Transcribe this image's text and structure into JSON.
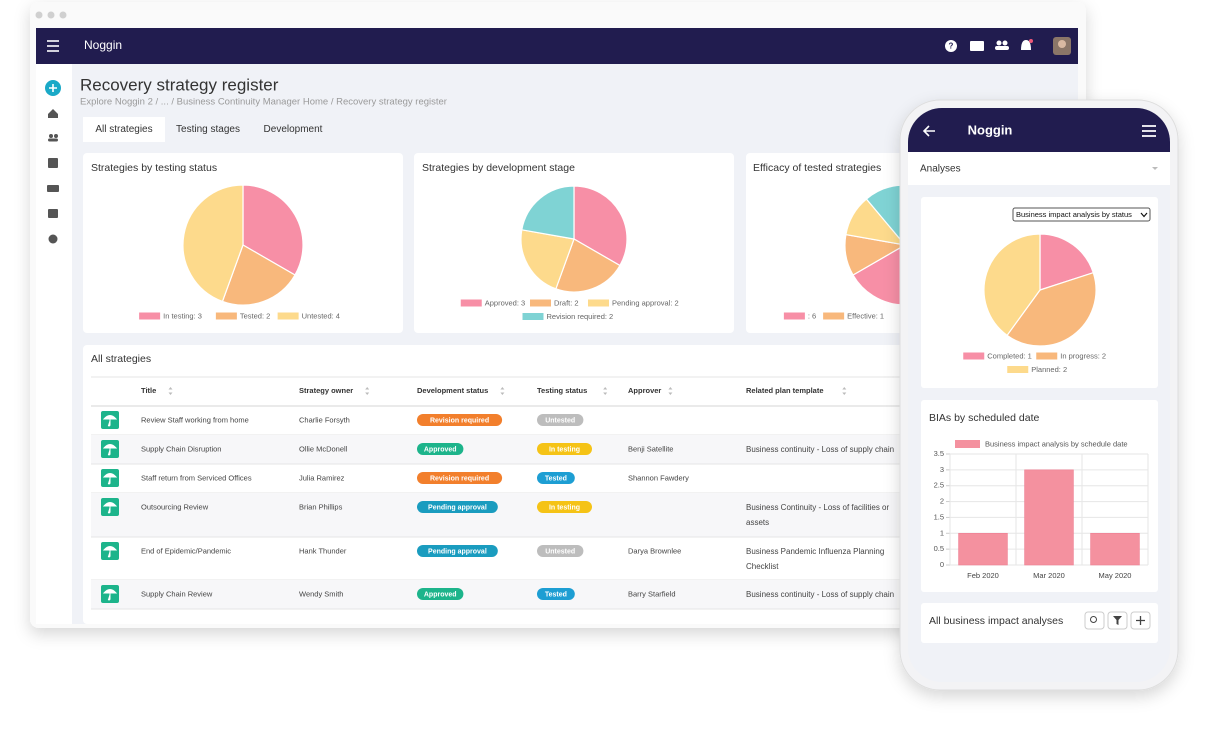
{
  "desktop": {
    "brand": "Noggin",
    "page_title": "Recovery strategy register",
    "breadcrumb": "Explore Noggin 2 / ... / Business Continuity Manager Home / Recovery strategy register",
    "tabs": [
      "All strategies",
      "Testing stages",
      "Development"
    ],
    "charts": [
      {
        "type": "pie",
        "title": "Strategies by testing status",
        "labels": [
          "In testing: 3",
          "Tested: 2",
          "Untested: 4"
        ],
        "values": [
          3,
          2,
          4
        ],
        "colors": [
          "#f78fa6",
          "#f8b87c",
          "#fdda8c"
        ]
      },
      {
        "type": "pie",
        "title": "Strategies by development stage",
        "labels": [
          "Approved: 3",
          "Draft: 2",
          "Pending approval: 2",
          "Revision required: 2"
        ],
        "values": [
          3,
          2,
          2,
          2
        ],
        "colors": [
          "#f78fa6",
          "#f8b87c",
          "#fdda8c",
          "#7fd3d4"
        ]
      },
      {
        "type": "pie",
        "title": "Efficacy of tested strategies",
        "labels": [
          ": 6",
          "Effective: 1",
          null,
          null
        ],
        "values": [
          6,
          1,
          1,
          1
        ],
        "colors": [
          "#f78fa6",
          "#f8b87c",
          "#fdda8c",
          "#7fd3d4"
        ]
      }
    ],
    "table": {
      "title": "All strategies",
      "columns": [
        "Title",
        "Strategy owner",
        "Development status",
        "Testing status",
        "Approver",
        "Related plan template"
      ],
      "rows": [
        [
          "Review Staff working from home",
          "Charlie Forsyth",
          "Revision required",
          "Untested",
          null,
          null
        ],
        [
          "Supply Chain Disruption",
          "Ollie McDonell",
          "Approved",
          "In testing",
          "Benji Satellite",
          "Business continuity - Loss of supply chain"
        ],
        [
          "Staff return from Serviced Offices",
          "Julia Ramirez",
          "Revision required",
          "Tested",
          "Shannon Fawdery",
          null
        ],
        [
          "Outsourcing Review",
          "Brian Phillips",
          "Pending approval",
          "In testing",
          null,
          "Business Continuity - Loss of facilities or assets"
        ],
        [
          "End of Epidemic/Pandemic",
          "Hank Thunder",
          "Pending approval",
          "Untested",
          "Darya Brownlee",
          "Business Pandemic Influenza Planning Checklist"
        ],
        [
          "Supply Chain Review",
          "Wendy Smith",
          "Approved",
          "Tested",
          "Barry Starfield",
          "Business continuity - Loss of supply chain"
        ]
      ],
      "badge_colors": {
        "Revision required": "#f27f2c",
        "Approved": "#1db48b",
        "Pending approval": "#1a9cbf",
        "Untested": "#bdbdbd",
        "In testing": "#f5c316",
        "Tested": "#1d9ed3"
      }
    }
  },
  "mobile": {
    "brand": "Noggin",
    "section": "Analyses",
    "charts": [
      {
        "type": "pie",
        "selector": "Business impact analysis by status",
        "labels": [
          "Completed: 1",
          "In progress: 2",
          "Planned: 2"
        ],
        "values": [
          1,
          2,
          2
        ],
        "colors": [
          "#f78fa6",
          "#f8b87c",
          "#fdda8c"
        ]
      },
      {
        "type": "bar",
        "title": "BIAs by scheduled date",
        "categories": [
          "Feb 2020",
          "Mar 2020",
          "May 2020"
        ],
        "series": [
          {
            "name": "Business impact analysis by schedule date",
            "color": "#f4919f",
            "values": [
              1,
              3,
              1
            ]
          }
        ],
        "ylim": [
          0,
          3.5
        ],
        "yticks": [
          0,
          0.5,
          1,
          1.5,
          2,
          2.5,
          3,
          3.5
        ],
        "grid": true
      }
    ],
    "list_title": "All business impact analyses"
  }
}
